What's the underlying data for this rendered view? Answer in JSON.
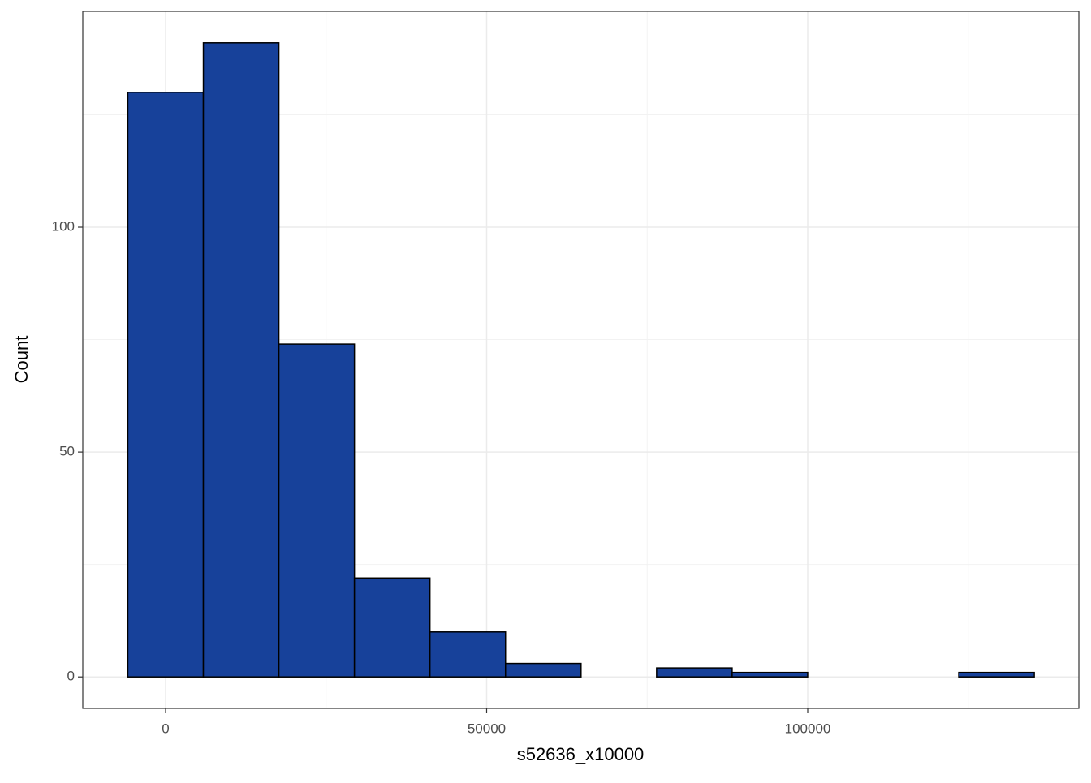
{
  "chart_data": {
    "type": "histogram",
    "x_label": "s52636_x10000",
    "y_label": "Count",
    "bins": [
      -5882,
      5882,
      17646,
      29410,
      41174,
      52938,
      64702,
      76466,
      88230,
      99994,
      111758,
      123522,
      135286
    ],
    "values": [
      130,
      141,
      74,
      22,
      10,
      3,
      0,
      2,
      1,
      0,
      0,
      1
    ],
    "color": "#17419a",
    "edge_color": "#000000",
    "xlim": [
      -12895,
      142225
    ],
    "ylim": [
      -7,
      148
    ],
    "xticks": [
      0,
      50000,
      100000
    ],
    "yticks": [
      0,
      50,
      100
    ],
    "minor_xticks": [
      25000,
      75000,
      125000
    ],
    "minor_yticks": [
      25,
      75,
      125
    ],
    "grid": true
  }
}
